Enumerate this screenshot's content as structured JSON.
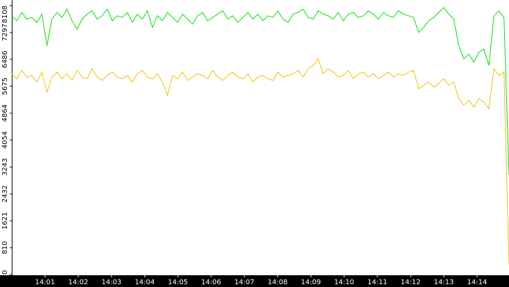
{
  "chart_data": {
    "type": "line",
    "ylim": [
      0,
      8108
    ],
    "yticks": [
      0,
      810,
      1621,
      2432,
      3243,
      4054,
      4864,
      5675,
      6486,
      7297,
      8108
    ],
    "xlim": [
      0,
      14.96
    ],
    "xticks": [
      {
        "value": 1,
        "label": "14:01"
      },
      {
        "value": 2,
        "label": "14:02"
      },
      {
        "value": 3,
        "label": "14:03"
      },
      {
        "value": 4,
        "label": "14:04"
      },
      {
        "value": 5,
        "label": "14:05"
      },
      {
        "value": 6,
        "label": "14:06"
      },
      {
        "value": 7,
        "label": "14:07"
      },
      {
        "value": 8,
        "label": "14:08"
      },
      {
        "value": 9,
        "label": "14:09"
      },
      {
        "value": 10,
        "label": "14:10"
      },
      {
        "value": 11,
        "label": "14:11"
      },
      {
        "value": 12,
        "label": "14:12"
      },
      {
        "value": 13,
        "label": "14:13"
      },
      {
        "value": 14,
        "label": "14:14"
      }
    ],
    "series": [
      {
        "color": "#00e000",
        "values": [
          7800,
          7650,
          7900,
          7700,
          7750,
          7600,
          7850,
          6900,
          7700,
          7900,
          7750,
          8000,
          7650,
          7400,
          7700,
          7850,
          7950,
          7700,
          7800,
          8000,
          7650,
          7800,
          7750,
          7900,
          7600,
          7850,
          7700,
          7950,
          7450,
          7800,
          7650,
          7900,
          7750,
          7600,
          7850,
          7700,
          7550,
          7800,
          7900,
          7650,
          7750,
          7850,
          7950,
          7700,
          7800,
          7600,
          7750,
          7900,
          7700,
          7850,
          7650,
          7800,
          7750,
          7950,
          7700,
          7600,
          7850,
          7900,
          8000,
          7750,
          7700,
          7950,
          7850,
          7800,
          7700,
          7900,
          7650,
          7850,
          7900,
          7750,
          7800,
          7950,
          7850,
          7700,
          7900,
          7800,
          7750,
          7950,
          7850,
          7800,
          7750,
          7300,
          7450,
          7650,
          7750,
          7900,
          8050,
          7850,
          7700,
          6900,
          6500,
          6650,
          6400,
          6700,
          6800,
          6300,
          7800,
          7950,
          7750,
          3000
        ]
      },
      {
        "color": "#f0c000",
        "values": [
          6050,
          5900,
          6150,
          5950,
          6000,
          5800,
          6100,
          5500,
          5950,
          6100,
          5900,
          6050,
          5850,
          6150,
          5950,
          5900,
          6200,
          5950,
          5850,
          6000,
          6100,
          5950,
          5900,
          6000,
          5800,
          6050,
          6150,
          5950,
          5900,
          6050,
          5800,
          5400,
          6000,
          5900,
          6100,
          5850,
          5950,
          6050,
          6000,
          5900,
          6150,
          5950,
          5850,
          6000,
          6100,
          5950,
          5900,
          6050,
          5800,
          5950,
          6000,
          5900,
          5850,
          6100,
          5950,
          6000,
          6050,
          6150,
          5950,
          6200,
          6300,
          6500,
          6050,
          6200,
          6100,
          5950,
          6000,
          6150,
          5900,
          6050,
          6100,
          5950,
          6050,
          5900,
          6000,
          6100,
          5950,
          6050,
          6000,
          6100,
          6150,
          5600,
          5700,
          5800,
          5650,
          5750,
          5900,
          5700,
          5800,
          5300,
          5100,
          5250,
          5050,
          5300,
          5200,
          5000,
          6200,
          6000,
          6100,
          300
        ]
      }
    ]
  }
}
